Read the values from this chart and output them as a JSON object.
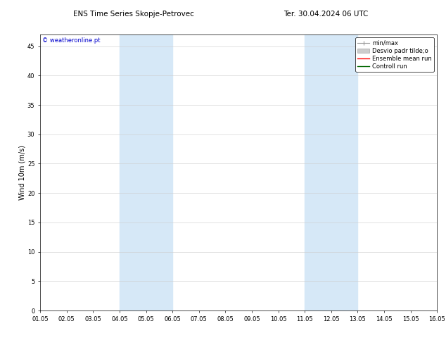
{
  "title_left": "ENS Time Series Skopje-Petrovec",
  "title_right": "Ter. 30.04.2024 06 UTC",
  "ylabel": "Wind 10m (m/s)",
  "watermark": "© weatheronline.pt",
  "xlim_start": 0,
  "xlim_end": 15,
  "ylim_min": 0,
  "ylim_max": 47,
  "yticks": [
    0,
    5,
    10,
    15,
    20,
    25,
    30,
    35,
    40,
    45
  ],
  "xtick_labels": [
    "01.05",
    "02.05",
    "03.05",
    "04.05",
    "05.05",
    "06.05",
    "07.05",
    "08.05",
    "09.05",
    "10.05",
    "11.05",
    "12.05",
    "13.05",
    "14.05",
    "15.05",
    "16.05"
  ],
  "shaded_regions": [
    {
      "xstart": 3.0,
      "xend": 5.0,
      "color": "#d6e8f7"
    },
    {
      "xstart": 10.0,
      "xend": 12.0,
      "color": "#d6e8f7"
    }
  ],
  "bg_color": "#ffffff",
  "plot_bg_color": "#ffffff",
  "grid_color": "#cccccc",
  "tick_label_fontsize": 6.0,
  "axis_label_fontsize": 7.0,
  "title_fontsize": 7.5,
  "watermark_color": "#0000cc",
  "watermark_fontsize": 6.0,
  "legend_fontsize": 6.0,
  "minmax_color": "#999999",
  "desvio_color": "#cccccc",
  "ensemble_color": "#ff0000",
  "control_color": "#006600"
}
